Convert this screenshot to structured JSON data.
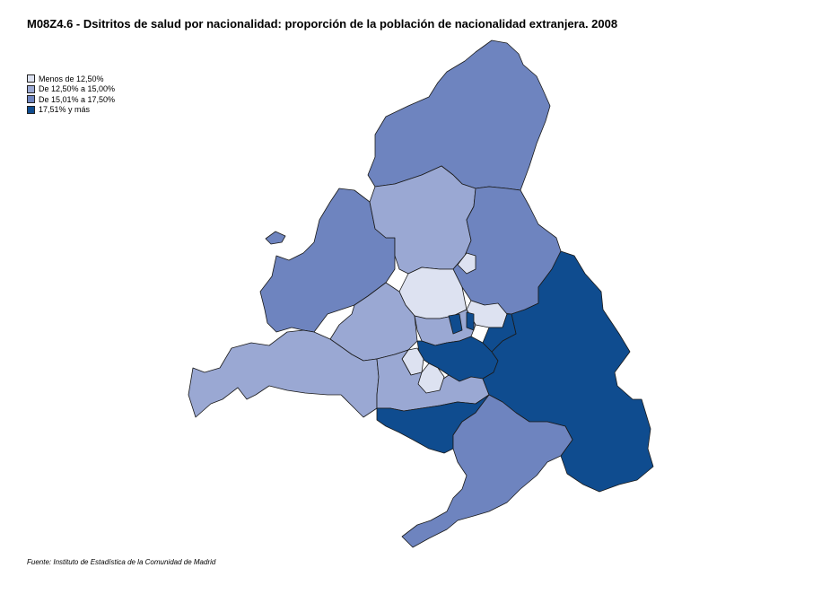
{
  "title": "M08Z4.6 - Dsitritos de salud por nacionalidad: proporción de la población de nacionalidad extranjera. 2008",
  "legend": {
    "items": [
      {
        "label": "Menos de 12,50%",
        "color": "#dde2f1"
      },
      {
        "label": "De 12,50% a 15,00%",
        "color": "#9aa8d3"
      },
      {
        "label": "De 15,01% a 17,50%",
        "color": "#6e84bf"
      },
      {
        "label": "17,51% y más",
        "color": "#0f4c8f"
      }
    ]
  },
  "source": "Fuente: Instituto de Estadística de la Comunidad de Madrid"
}
